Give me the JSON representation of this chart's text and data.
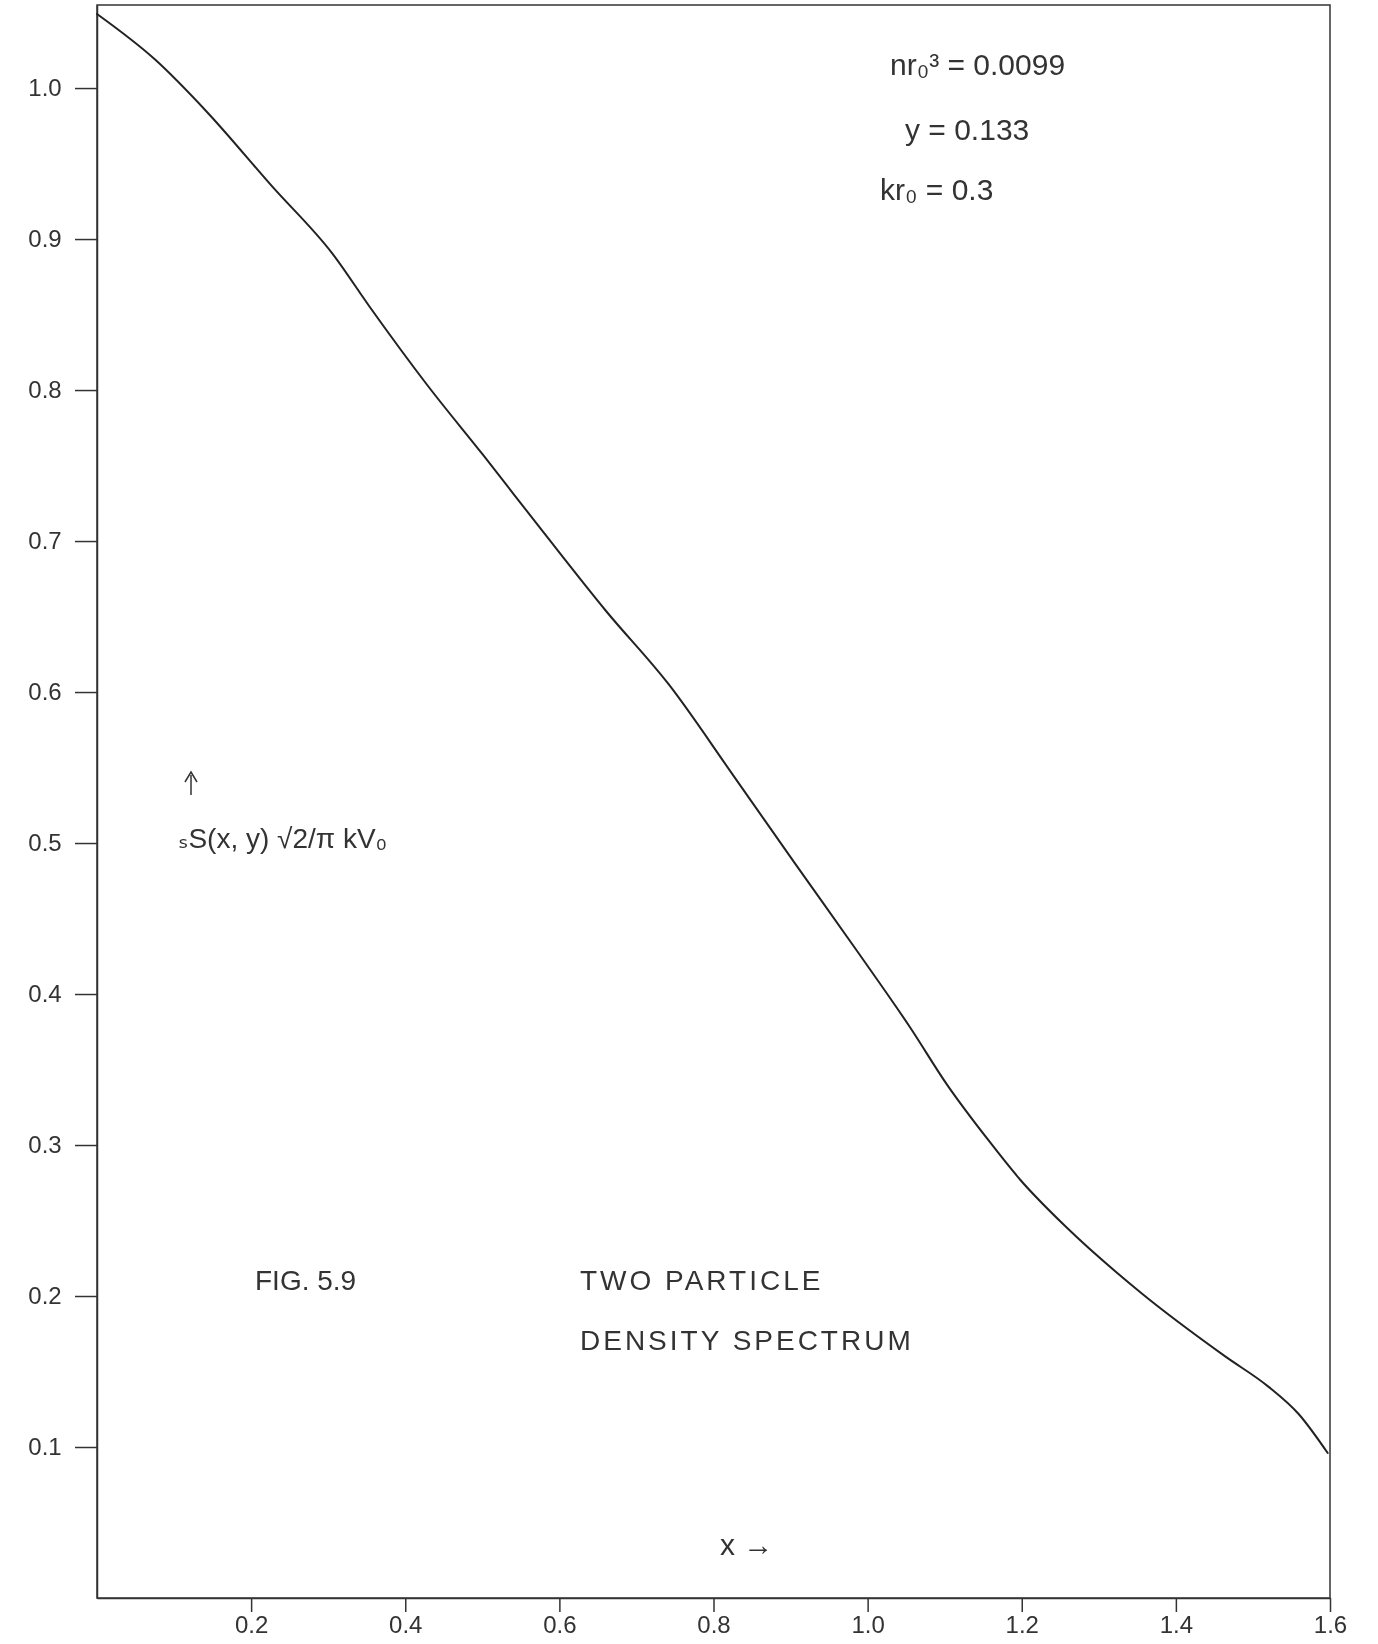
{
  "chart_data": {
    "type": "line",
    "title": "FIG. 5.9",
    "subtitle": "TWO PARTICLE DENSITY SPECTRUM",
    "xlabel": "x →",
    "ylabel": "ₛS(x, y) √2/π kV₀",
    "annotations": [
      "nr₀³ = 0.0099",
      "y = 0.133",
      "kr₀ = 0.3"
    ],
    "x": [
      0,
      0.075,
      0.143,
      0.227,
      0.306,
      0.354,
      0.429,
      0.501,
      0.579,
      0.66,
      0.742,
      0.824,
      0.905,
      0.987,
      1.055,
      1.103,
      1.157,
      1.198,
      1.259,
      1.355,
      1.464,
      1.52,
      1.559,
      1.597
    ],
    "series": [
      {
        "color": "#222222",
        "values": [
          1.049,
          1.019,
          0.984,
          0.935,
          0.89,
          0.855,
          0.803,
          0.757,
          0.706,
          0.654,
          0.605,
          0.546,
          0.487,
          0.428,
          0.378,
          0.34,
          0.303,
          0.277,
          0.245,
          0.202,
          0.16,
          0.14,
          0.122,
          0.096
        ]
      }
    ],
    "xlim": [
      0,
      1.6
    ],
    "ylim": [
      0,
      1.055
    ],
    "xticks": [
      0.2,
      0.4,
      0.6,
      0.8,
      {
        "value": 1.0,
        "label": "1.0"
      },
      1.2,
      1.4,
      1.6
    ],
    "yticks": [
      0.1,
      0.2,
      0.3,
      0.4,
      0.5,
      0.6,
      0.7,
      0.8,
      0.9,
      {
        "value": 1.0,
        "label": "1.0"
      }
    ],
    "grid": false,
    "marker": "none",
    "line_style": "solid"
  }
}
